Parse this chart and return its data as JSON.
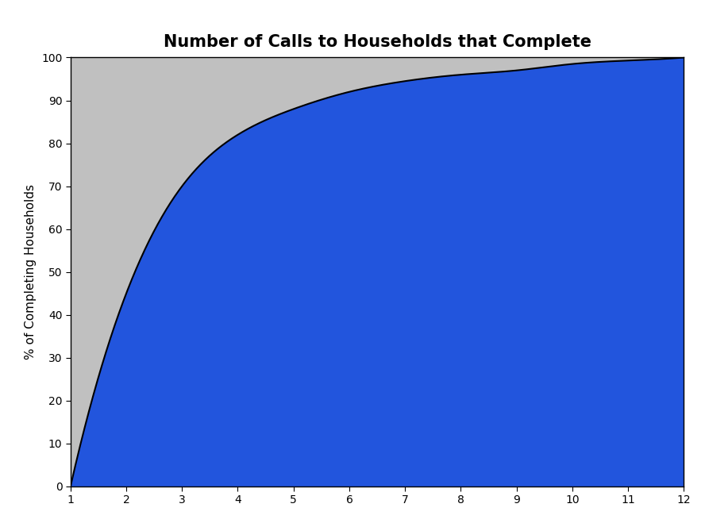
{
  "title": "Number of Calls to Households that Complete",
  "xlabel": "",
  "ylabel": "% of Completing Households",
  "x_data": [
    1,
    2,
    3,
    4,
    5,
    6,
    7,
    8,
    9,
    10,
    11,
    12
  ],
  "y_data": [
    0,
    45,
    70,
    82,
    88,
    92,
    94.5,
    96,
    97,
    98.5,
    99.3,
    100
  ],
  "xlim": [
    1,
    12
  ],
  "ylim": [
    0,
    100
  ],
  "xticks": [
    1,
    2,
    3,
    4,
    5,
    6,
    7,
    8,
    9,
    10,
    11,
    12
  ],
  "yticks": [
    0,
    10,
    20,
    30,
    40,
    50,
    60,
    70,
    80,
    90,
    100
  ],
  "fill_color": "#2255DD",
  "fill_above_color": "#C0C0C0",
  "line_color": "#000000",
  "background_color": "#FFFFFF",
  "plot_bg_color": "#FFFFFF",
  "title_fontsize": 15,
  "label_fontsize": 11,
  "tick_fontsize": 10,
  "grid_color": "#888888",
  "grid_linewidth": 0.8
}
